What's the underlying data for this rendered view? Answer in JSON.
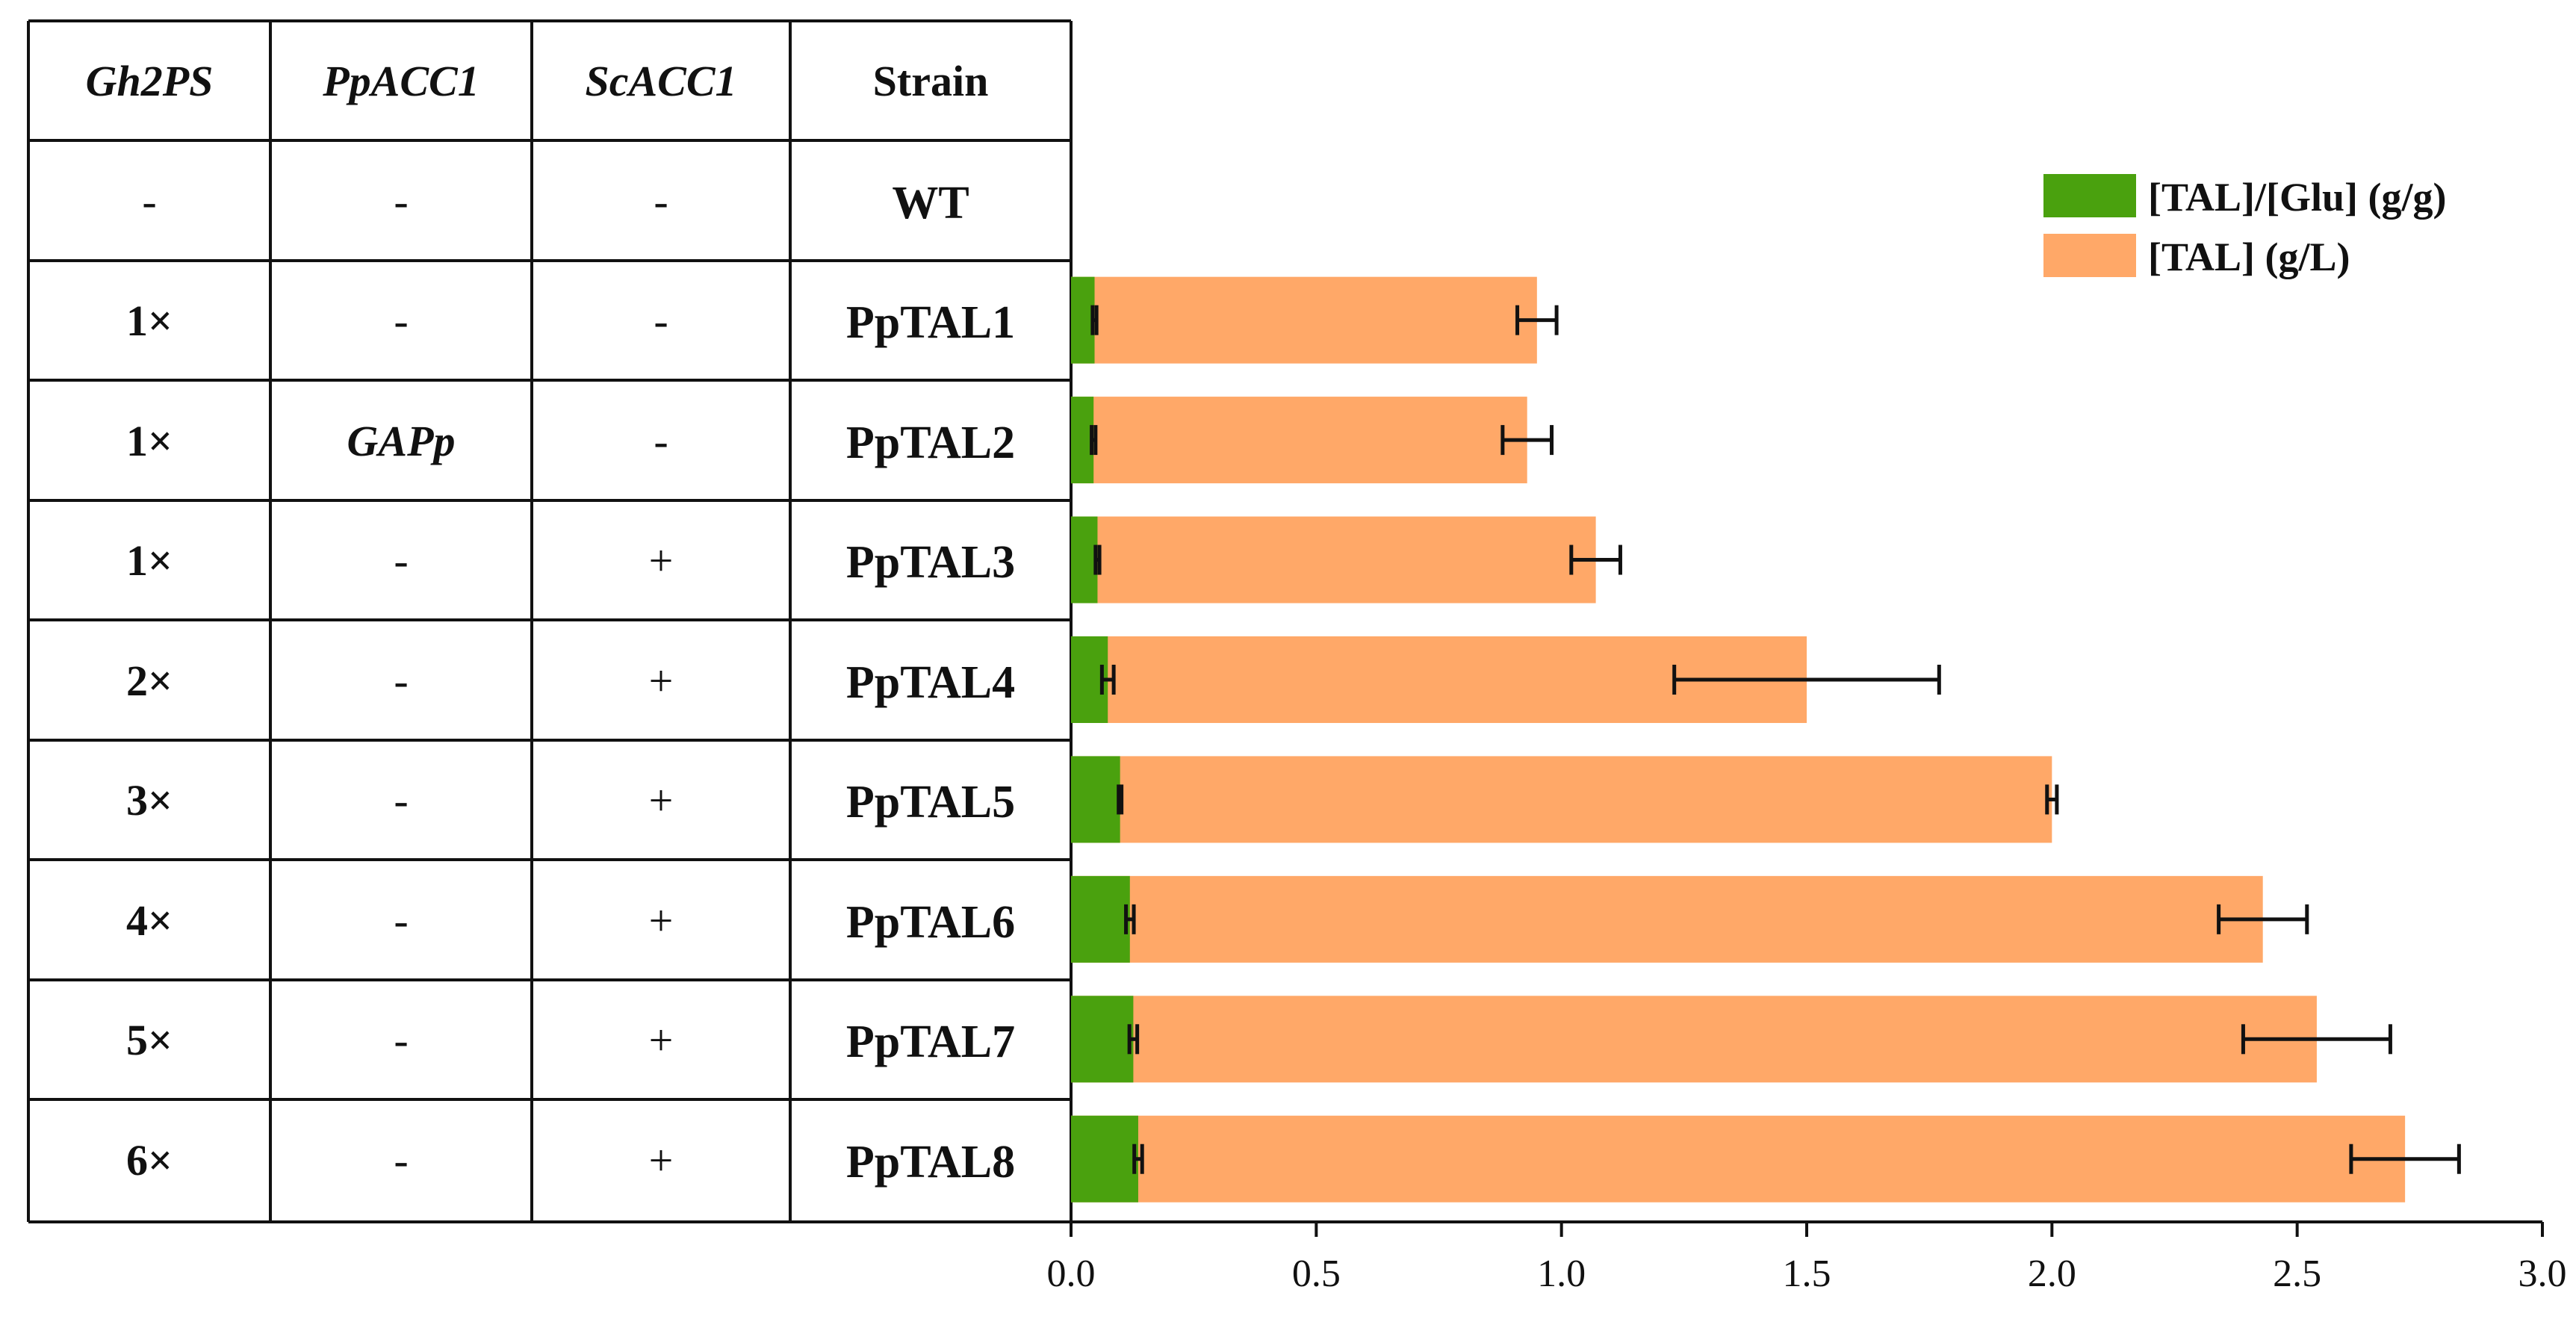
{
  "table": {
    "headers": [
      "Gh2PS",
      "PpACC1",
      "ScACC1",
      "Strain"
    ],
    "rows": [
      {
        "gh2ps": "-",
        "ppacc1": "-",
        "scacc1": "-",
        "strain": "WT"
      },
      {
        "gh2ps": "1×",
        "ppacc1": "-",
        "scacc1": "-",
        "strain": "PpTAL1"
      },
      {
        "gh2ps": "1×",
        "ppacc1": "GAPp",
        "scacc1": "-",
        "strain": "PpTAL2"
      },
      {
        "gh2ps": "1×",
        "ppacc1": "-",
        "scacc1": "+",
        "strain": "PpTAL3"
      },
      {
        "gh2ps": "2×",
        "ppacc1": "-",
        "scacc1": "+",
        "strain": "PpTAL4"
      },
      {
        "gh2ps": "3×",
        "ppacc1": "-",
        "scacc1": "+",
        "strain": "PpTAL5"
      },
      {
        "gh2ps": "4×",
        "ppacc1": "-",
        "scacc1": "+",
        "strain": "PpTAL6"
      },
      {
        "gh2ps": "5×",
        "ppacc1": "-",
        "scacc1": "+",
        "strain": "PpTAL7"
      },
      {
        "gh2ps": "6×",
        "ppacc1": "-",
        "scacc1": "+",
        "strain": "PpTAL8"
      }
    ]
  },
  "chart_data": {
    "type": "bar",
    "orientation": "horizontal",
    "categories": [
      "WT",
      "PpTAL1",
      "PpTAL2",
      "PpTAL3",
      "PpTAL4",
      "PpTAL5",
      "PpTAL6",
      "PpTAL7",
      "PpTAL8"
    ],
    "series": [
      {
        "name": "[TAL] (g/L)",
        "color": "#FFA868",
        "values": [
          0,
          0.95,
          0.93,
          1.07,
          1.5,
          2.0,
          2.43,
          2.54,
          2.72
        ],
        "errors": [
          0,
          0.04,
          0.05,
          0.05,
          0.27,
          0.01,
          0.09,
          0.15,
          0.11
        ]
      },
      {
        "name": "[TAL]/[Glu] (g/g)",
        "color": "#4AA10E",
        "values": [
          0,
          0.048,
          0.046,
          0.054,
          0.075,
          0.1,
          0.12,
          0.127,
          0.137
        ],
        "errors": [
          0,
          0.004,
          0.004,
          0.004,
          0.012,
          0.003,
          0.008,
          0.008,
          0.008
        ]
      }
    ],
    "xlim": [
      0.0,
      3.0
    ],
    "xticks": [
      "0.0",
      "0.5",
      "1.0",
      "1.5",
      "2.0",
      "2.5",
      "3.0"
    ],
    "legend_position": "top-right",
    "title": "",
    "xlabel": "",
    "ylabel": ""
  }
}
